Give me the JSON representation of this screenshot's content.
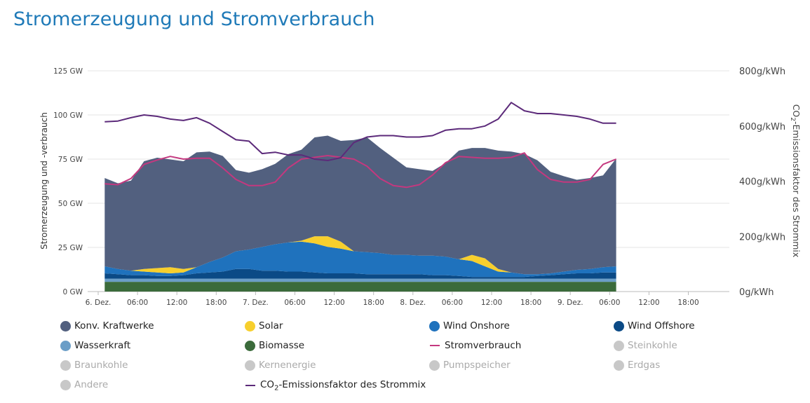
{
  "header": {
    "title": "Stromerzeugung und Stromverbrauch"
  },
  "chart_data": {
    "type": "area",
    "x_unit": "hours since first tick",
    "x_ticks": [
      {
        "x": 0,
        "label": "6. Dez."
      },
      {
        "x": 6,
        "label": "06:00"
      },
      {
        "x": 12,
        "label": "12:00"
      },
      {
        "x": 18,
        "label": "18:00"
      },
      {
        "x": 24,
        "label": "7. Dez."
      },
      {
        "x": 30,
        "label": "06:00"
      },
      {
        "x": 36,
        "label": "12:00"
      },
      {
        "x": 42,
        "label": "18:00"
      },
      {
        "x": 48,
        "label": "8. Dez."
      },
      {
        "x": 54,
        "label": "06:00"
      },
      {
        "x": 60,
        "label": "12:00"
      },
      {
        "x": 66,
        "label": "18:00"
      },
      {
        "x": 72,
        "label": "9. Dez."
      },
      {
        "x": 78,
        "label": "06:00"
      },
      {
        "x": 84,
        "label": "12:00"
      },
      {
        "x": 90,
        "label": "18:00"
      }
    ],
    "xlim": [
      0,
      96
    ],
    "y_left": {
      "label": "Stromerzeugung und -verbrauch",
      "ticks": [
        "0 GW",
        "25 GW",
        "50 GW",
        "75 GW",
        "100 GW",
        "125 GW"
      ],
      "ylim": [
        0,
        125
      ]
    },
    "y_right": {
      "label_prefix": "CO",
      "label_sub": "2",
      "label_suffix": "-Emissionsfaktor des Strommix",
      "ticks": [
        "0g/kWh",
        "200g/kWh",
        "400g/kWh",
        "600g/kWh",
        "800g/kWh"
      ],
      "ylim": [
        0,
        800
      ]
    },
    "grid": true,
    "stacked": true,
    "x": [
      1,
      3,
      5,
      7,
      9,
      11,
      13,
      15,
      17,
      19,
      21,
      23,
      25,
      27,
      29,
      31,
      33,
      35,
      37,
      39,
      41,
      43,
      45,
      47,
      49,
      51,
      53,
      55,
      57,
      59,
      61,
      63,
      65,
      67,
      69,
      71,
      73,
      75,
      77,
      79
    ],
    "series": [
      {
        "name": "Biomasse",
        "color": "#3b6b3b",
        "values": [
          5.5,
          5.5,
          5.5,
          5.5,
          5.5,
          5.5,
          5.5,
          5.5,
          5.5,
          5.5,
          5.5,
          5.5,
          5.5,
          5.5,
          5.5,
          5.5,
          5.5,
          5.5,
          5.5,
          5.5,
          5.5,
          5.5,
          5.5,
          5.5,
          5.5,
          5.5,
          5.5,
          5.5,
          5.5,
          5.5,
          5.5,
          5.5,
          5.5,
          5.5,
          5.5,
          5.5,
          5.5,
          5.5,
          5.5,
          5.5
        ]
      },
      {
        "name": "Wasserkraft",
        "color": "#6b9ec7",
        "values": [
          1.8,
          1.8,
          1.8,
          1.8,
          1.8,
          1.8,
          1.8,
          1.8,
          1.8,
          1.8,
          1.8,
          1.8,
          1.8,
          1.8,
          1.8,
          1.8,
          1.8,
          1.8,
          1.8,
          1.8,
          1.8,
          1.8,
          1.8,
          1.8,
          1.8,
          1.8,
          1.8,
          1.8,
          1.8,
          1.8,
          1.8,
          1.8,
          1.8,
          1.8,
          1.8,
          1.8,
          1.8,
          1.8,
          1.8,
          1.8
        ]
      },
      {
        "name": "Wind Offshore",
        "color": "#0b4a86",
        "values": [
          3.0,
          2.5,
          2.0,
          2.0,
          1.5,
          1.5,
          2.0,
          3.0,
          3.5,
          4.0,
          5.5,
          5.5,
          4.5,
          4.5,
          4.0,
          4.0,
          3.5,
          3.0,
          3.0,
          3.0,
          2.5,
          2.5,
          2.5,
          2.5,
          2.5,
          2.0,
          2.0,
          1.5,
          1.0,
          1.0,
          1.0,
          1.0,
          1.0,
          1.5,
          2.0,
          2.5,
          3.0,
          3.0,
          3.5,
          3.5
        ]
      },
      {
        "name": "Wind Onshore",
        "color": "#1f72bd",
        "values": [
          4.0,
          3.0,
          2.5,
          2.0,
          2.0,
          1.5,
          1.5,
          3.5,
          6.0,
          8.0,
          10.0,
          11.0,
          13.5,
          15.0,
          16.5,
          17.0,
          16.5,
          15.0,
          14.0,
          12.5,
          12.5,
          12.0,
          11.0,
          11.0,
          10.5,
          11.0,
          10.5,
          9.5,
          9.0,
          6.0,
          3.0,
          2.5,
          1.5,
          1.0,
          1.0,
          1.5,
          2.0,
          2.5,
          3.0,
          3.5
        ]
      },
      {
        "name": "Solar",
        "color": "#f7cf2d",
        "values": [
          0,
          0,
          0,
          1.5,
          2.5,
          3.5,
          2.0,
          0,
          0,
          0,
          0,
          0,
          0,
          0,
          0,
          0.5,
          4.0,
          6.0,
          4.0,
          0,
          0,
          0,
          0,
          0,
          0,
          0,
          0,
          0,
          3.5,
          4.5,
          1.5,
          0,
          0,
          0,
          0,
          0,
          0,
          0,
          0,
          0
        ]
      },
      {
        "name": "Konv. Kraftwerke",
        "color": "#52607f",
        "values": [
          50.0,
          48.5,
          51.0,
          61.0,
          62.5,
          61.0,
          61.0,
          65.0,
          62.5,
          57.5,
          46.0,
          43.5,
          44.0,
          45.5,
          50.0,
          51.5,
          56.0,
          57.0,
          57.0,
          63.0,
          65.0,
          59.5,
          55.0,
          49.5,
          49.0,
          48.0,
          53.0,
          61.5,
          60.5,
          62.5,
          67.0,
          68.5,
          68.0,
          64.5,
          57.5,
          54.0,
          51.0,
          51.5,
          52.0,
          61.0
        ]
      }
    ],
    "lines": [
      {
        "name": "Stromverbrauch",
        "color": "#c4387f",
        "axis": "left",
        "values": [
          61.0,
          60.5,
          64.0,
          72.0,
          74.5,
          76.5,
          75.0,
          75.5,
          75.5,
          70.0,
          63.5,
          60.0,
          60.0,
          62.0,
          70.0,
          75.0,
          76.0,
          77.0,
          76.0,
          75.0,
          71.0,
          64.0,
          60.0,
          59.0,
          60.5,
          66.0,
          73.0,
          76.5,
          76.0,
          75.5,
          75.5,
          76.0,
          78.5,
          69.0,
          63.5,
          62.0,
          62.0,
          63.5,
          72.0,
          75.0
        ]
      },
      {
        "name": "CO",
        "sub": "2",
        "suffix": "-Emissionsfaktor des Strommix",
        "color": "#5c2a7a",
        "axis": "right",
        "values": [
          615,
          618,
          630,
          640,
          635,
          625,
          620,
          630,
          610,
          580,
          550,
          545,
          500,
          505,
          495,
          495,
          480,
          475,
          485,
          540,
          560,
          565,
          565,
          560,
          560,
          565,
          585,
          590,
          590,
          600,
          625,
          685,
          655,
          645,
          645,
          640,
          635,
          625,
          610,
          610
        ]
      }
    ]
  },
  "legend": [
    {
      "label": "Konv. Kraftwerke",
      "color": "#52607f",
      "kind": "dot",
      "active": true
    },
    {
      "label": "Solar",
      "color": "#f7cf2d",
      "kind": "dot",
      "active": true
    },
    {
      "label": "Wind Onshore",
      "color": "#1f72bd",
      "kind": "dot",
      "active": true
    },
    {
      "label": "Wind Offshore",
      "color": "#0b4a86",
      "kind": "dot",
      "active": true
    },
    {
      "label": "Wasserkraft",
      "color": "#6b9ec7",
      "kind": "dot",
      "active": true
    },
    {
      "label": "Biomasse",
      "color": "#3b6b3b",
      "kind": "dot",
      "active": true
    },
    {
      "label": "Stromverbrauch",
      "color": "#c4387f",
      "kind": "line",
      "active": true
    },
    {
      "label": "Steinkohle",
      "color": "#c8c8c8",
      "kind": "dot",
      "active": false
    },
    {
      "label": "Braunkohle",
      "color": "#c8c8c8",
      "kind": "dot",
      "active": false
    },
    {
      "label": "Kernenergie",
      "color": "#c8c8c8",
      "kind": "dot",
      "active": false
    },
    {
      "label": "Pumpspeicher",
      "color": "#c8c8c8",
      "kind": "dot",
      "active": false
    },
    {
      "label": "Erdgas",
      "color": "#c8c8c8",
      "kind": "dot",
      "active": false
    },
    {
      "label": "Andere",
      "color": "#c8c8c8",
      "kind": "dot",
      "active": false
    },
    {
      "label": "CO",
      "sub": "2",
      "suffix": "-Emissionsfaktor des Strommix",
      "color": "#5c2a7a",
      "kind": "line",
      "active": true
    }
  ]
}
